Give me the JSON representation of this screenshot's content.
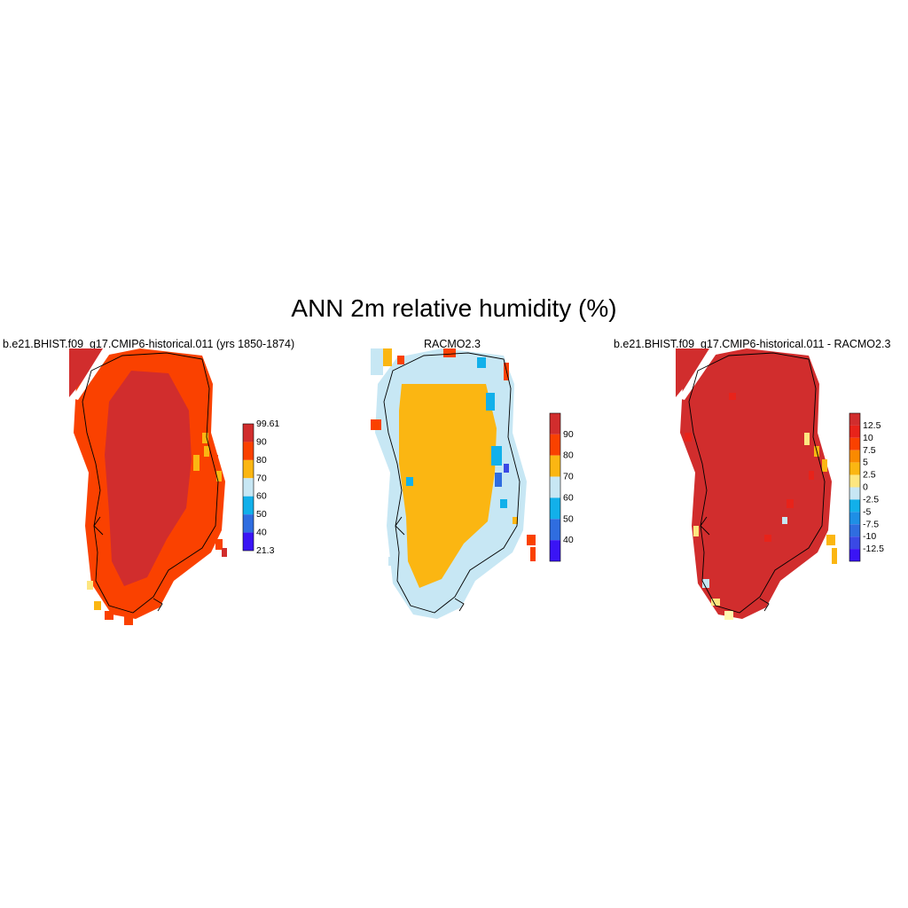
{
  "title": "ANN 2m relative humidity (%)",
  "palette": {
    "bg": "#ffffff",
    "crimson": "#d12d2d",
    "red": "#e8231a",
    "orange_red": "#fa4100",
    "orange": "#fa8a00",
    "amber": "#fbb612",
    "yellow": "#fde680",
    "light_yellow": "#fff7b0",
    "light_blue": "#c7e7f4",
    "sky": "#12b0ea",
    "mid_blue": "#1e8fe6",
    "blue": "#2f6de0",
    "royal": "#3a49e5",
    "violet": "#3a14f5"
  },
  "panels": [
    {
      "id": "model",
      "title": "b.e21.BHIST.f09_g17.CMIP6-historical.011 (yrs 1850-1874)",
      "colorbar": {
        "labels": [
          "99.61",
          "90",
          "80",
          "70",
          "60",
          "50",
          "40",
          "21.3"
        ],
        "bins": [
          {
            "color": "#d12d2d"
          },
          {
            "color": "#fa4100"
          },
          {
            "color": "#fbb612"
          },
          {
            "color": "#c7e7f4"
          },
          {
            "color": "#12b0ea"
          },
          {
            "color": "#2f6de0"
          },
          {
            "color": "#3a14f5"
          }
        ]
      }
    },
    {
      "id": "obs",
      "title": "RACMO2.3",
      "colorbar": {
        "labels": [
          "90",
          "80",
          "70",
          "60",
          "50",
          "40"
        ],
        "bins": [
          {
            "color": "#d12d2d"
          },
          {
            "color": "#fa4100"
          },
          {
            "color": "#fbb612"
          },
          {
            "color": "#c7e7f4"
          },
          {
            "color": "#12b0ea"
          },
          {
            "color": "#2f6de0"
          },
          {
            "color": "#3a14f5"
          }
        ]
      }
    },
    {
      "id": "diff",
      "title": "b.e21.BHIST.f09_g17.CMIP6-historical.011 - RACMO2.3",
      "colorbar": {
        "labels": [
          "12.5",
          "10",
          "7.5",
          "5",
          "2.5",
          "0",
          "-2.5",
          "-5",
          "-7.5",
          "-10",
          "-12.5"
        ],
        "bins": [
          {
            "color": "#d12d2d"
          },
          {
            "color": "#e8231a"
          },
          {
            "color": "#fa4100"
          },
          {
            "color": "#fa8a00"
          },
          {
            "color": "#fbb612"
          },
          {
            "color": "#fde680"
          },
          {
            "color": "#c7e7f4"
          },
          {
            "color": "#12b0ea"
          },
          {
            "color": "#1e8fe6"
          },
          {
            "color": "#2f6de0"
          },
          {
            "color": "#3a49e5"
          },
          {
            "color": "#3a14f5"
          }
        ]
      }
    }
  ]
}
